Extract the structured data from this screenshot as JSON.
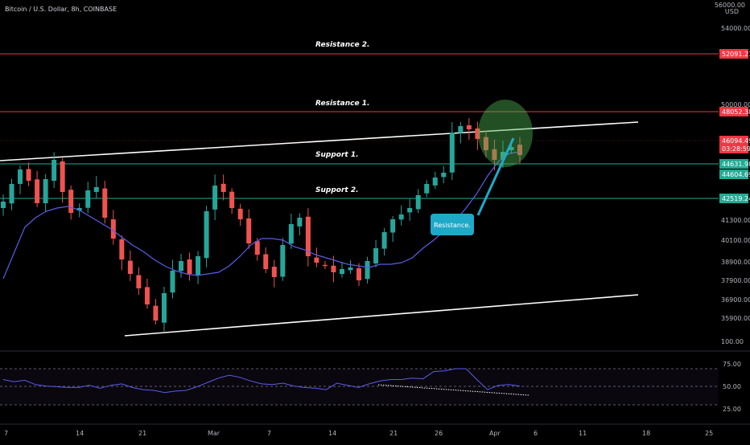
{
  "header": {
    "symbol_title": "Bitcoin / U.S. Dollar, 8h, COINBASE"
  },
  "price_axis": {
    "top_label": "56000.00",
    "currency": "USD",
    "ticks": [
      "54000.00",
      "50000.00",
      "41300.00",
      "40100.00",
      "38900.00",
      "37900.00",
      "36900.00",
      "35900.00"
    ],
    "bottom_label": "100.00"
  },
  "levels": [
    {
      "name": "Resistance 2.",
      "value": "52091.21",
      "color": "#f23645",
      "kind": "resistance"
    },
    {
      "name": "Resistance 1.",
      "value": "48052.38",
      "color": "#f23645",
      "kind": "resistance"
    },
    {
      "name": "Support 1.",
      "value": "44631.98",
      "color": "#22ab94",
      "kind": "support"
    },
    {
      "name": "Support 2.",
      "value": "42519.24",
      "color": "#22ab94",
      "kind": "support"
    }
  ],
  "extra_price_tags": [
    {
      "value": "46094.49",
      "countdown": "03:28:59",
      "color": "#f23645"
    },
    {
      "value": "44604.69",
      "color": "#22ab94"
    }
  ],
  "annotation": {
    "label": "Resistance.",
    "color": "#1fa9c9"
  },
  "rsi_axis": {
    "ticks": [
      "75.00",
      "50.00",
      "25.00"
    ]
  },
  "time_axis": {
    "labels": [
      "7",
      "14",
      "21",
      "Mar",
      "7",
      "14",
      "21",
      "26",
      "Apr",
      "6",
      "11",
      "18",
      "25"
    ]
  },
  "chart_data": {
    "type": "candlestick",
    "title": "Bitcoin / U.S. Dollar, 8h, COINBASE",
    "y_unit": "USD",
    "ylim": [
      35000,
      56000
    ],
    "series": [
      {
        "name": "Price (close, approx.)",
        "values": [
          43200,
          44300,
          45200,
          44500,
          43100,
          44600,
          45800,
          43800,
          42500,
          42800,
          43900,
          44100,
          42200,
          40900,
          39600,
          38700,
          37800,
          36800,
          35800,
          37500,
          38900,
          39500,
          38700,
          39800,
          42600,
          44200,
          43800,
          42800,
          42100,
          40600,
          39900,
          39000,
          38500,
          40500,
          41800,
          42200,
          39800,
          39400,
          39200,
          38800,
          39000,
          39100,
          38300,
          39500,
          40300,
          41300,
          42100,
          42400,
          42800,
          43600,
          44300,
          44700,
          45000,
          47500,
          47900,
          47700,
          47100,
          46400,
          45800,
          46300,
          46600,
          46100
        ]
      },
      {
        "name": "Moving average (approx.)",
        "values": [
          38400,
          40000,
          41600,
          42200,
          42600,
          42800,
          42900,
          42700,
          42300,
          41900,
          41500,
          41000,
          40500,
          40100,
          39600,
          39200,
          38900,
          38700,
          38600,
          38700,
          38800,
          39200,
          39800,
          40500,
          40900,
          40900,
          40800,
          40400,
          40200,
          39900,
          39700,
          39500,
          39300,
          39200,
          39100,
          39300,
          39300,
          39400,
          39700,
          40300,
          40800,
          41400,
          42000,
          42800,
          43700,
          44800,
          45700,
          46200,
          46300
        ]
      },
      {
        "name": "RSI (approx.)",
        "values": [
          60,
          57,
          59,
          53,
          51,
          50,
          49,
          49,
          52,
          48,
          52,
          54,
          49,
          46,
          45,
          42,
          44,
          45,
          50,
          56,
          62,
          66,
          63,
          58,
          54,
          53,
          55,
          51,
          49,
          48,
          46,
          55,
          52,
          49,
          54,
          58,
          60,
          60,
          62,
          61,
          71,
          72,
          75,
          75,
          60,
          46,
          52,
          53,
          51
        ]
      }
    ],
    "x_labels": [
      "7",
      "14",
      "21",
      "Mar",
      "7",
      "14",
      "21",
      "26",
      "Apr",
      "6",
      "11",
      "18",
      "25"
    ],
    "rsi_levels": [
      75,
      50,
      25
    ]
  }
}
